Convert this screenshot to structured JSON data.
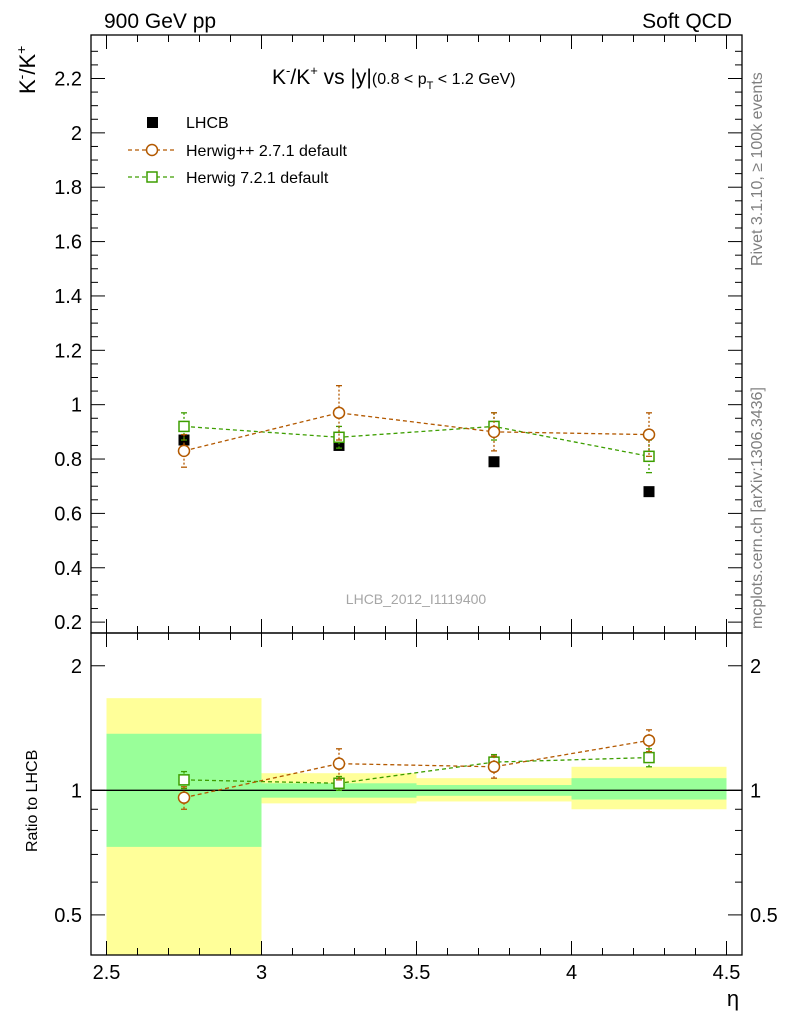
{
  "header": {
    "left": "900 GeV pp",
    "right": "Soft QCD"
  },
  "side": {
    "rivet": "Rivet 3.1.10, ≥ 100k events",
    "mcplots": "mcplots.cern.ch [arXiv:1306.3436]"
  },
  "main": {
    "ylabel_pre": "K",
    "ylabel_sup1": "-",
    "ylabel_mid": "/K",
    "ylabel_sup2": "+",
    "title_pre": "K",
    "title_sup1": "-",
    "title_mid": "/K",
    "title_sup2": "+",
    "title_post": " vs |y|",
    "title_range_a": "(0.8 < p",
    "title_range_sub": "T",
    "title_range_b": " < 1.2 GeV)",
    "analysis_id": "LHCB_2012_I1119400"
  },
  "ratio": {
    "ylabel": "Ratio to LHCB"
  },
  "xaxis": {
    "label": "η"
  },
  "colors": {
    "data": "#000000",
    "herwigpp": "#b35900",
    "herwig7": "#3d9e00",
    "band_inner": "#99ff99",
    "band_outer": "#ffff99",
    "axis_text": "#000000",
    "analysis_text": "#a6a6a6"
  },
  "chart_data": [
    {
      "type": "scatter",
      "panel": "main",
      "xlim": [
        2.45,
        4.55
      ],
      "ylim": [
        0.16,
        2.36
      ],
      "x_ticks": [
        "2.5",
        "3",
        "3.5",
        "4",
        "4.5"
      ],
      "y_ticks": [
        "0.2",
        "0.4",
        "0.6",
        "0.8",
        "1",
        "1.2",
        "1.4",
        "1.6",
        "1.8",
        "2",
        "2.2"
      ],
      "x": [
        2.75,
        3.25,
        3.75,
        4.25
      ],
      "legend_placement": "top-left",
      "series": [
        {
          "name": "LHCB",
          "marker": "filled-square",
          "values": [
            0.87,
            0.85,
            0.79,
            0.68
          ]
        },
        {
          "name": "Herwig++ 2.7.1 default",
          "marker": "open-circle",
          "line": "dashed",
          "values": [
            0.83,
            0.97,
            0.9,
            0.89
          ],
          "errors": [
            0.06,
            0.1,
            0.07,
            0.08
          ]
        },
        {
          "name": "Herwig 7.2.1 default",
          "marker": "open-square",
          "line": "dashed",
          "values": [
            0.92,
            0.88,
            0.92,
            0.81
          ],
          "errors": [
            0.05,
            0.04,
            0.05,
            0.06
          ]
        }
      ]
    },
    {
      "type": "scatter",
      "panel": "ratio",
      "ylabel": "Ratio to LHCB",
      "xlabel": "η",
      "xlim": [
        2.45,
        4.55
      ],
      "ylim": [
        0.4,
        2.4
      ],
      "y_scale": "log",
      "y_ticks": [
        "0.5",
        "1",
        "2"
      ],
      "x_ticks": [
        "2.5",
        "3",
        "3.5",
        "4",
        "4.5"
      ],
      "bins": [
        [
          2.5,
          3.0
        ],
        [
          3.0,
          3.5
        ],
        [
          3.5,
          4.0
        ],
        [
          4.0,
          4.5
        ]
      ],
      "band_inner": [
        [
          0.73,
          1.37
        ],
        [
          0.96,
          1.04
        ],
        [
          0.97,
          1.03
        ],
        [
          0.95,
          1.07
        ]
      ],
      "band_outer": [
        [
          0.4,
          1.67
        ],
        [
          0.93,
          1.1
        ],
        [
          0.94,
          1.07
        ],
        [
          0.9,
          1.14
        ]
      ],
      "x": [
        2.75,
        3.25,
        3.75,
        4.25
      ],
      "series": [
        {
          "name": "Herwig++ 2.7.1 default",
          "values": [
            0.96,
            1.16,
            1.14,
            1.32
          ],
          "errors": [
            0.06,
            0.1,
            0.07,
            0.08
          ]
        },
        {
          "name": "Herwig 7.2.1 default",
          "values": [
            1.06,
            1.04,
            1.17,
            1.2
          ],
          "errors": [
            0.05,
            0.04,
            0.05,
            0.06
          ]
        }
      ]
    }
  ]
}
